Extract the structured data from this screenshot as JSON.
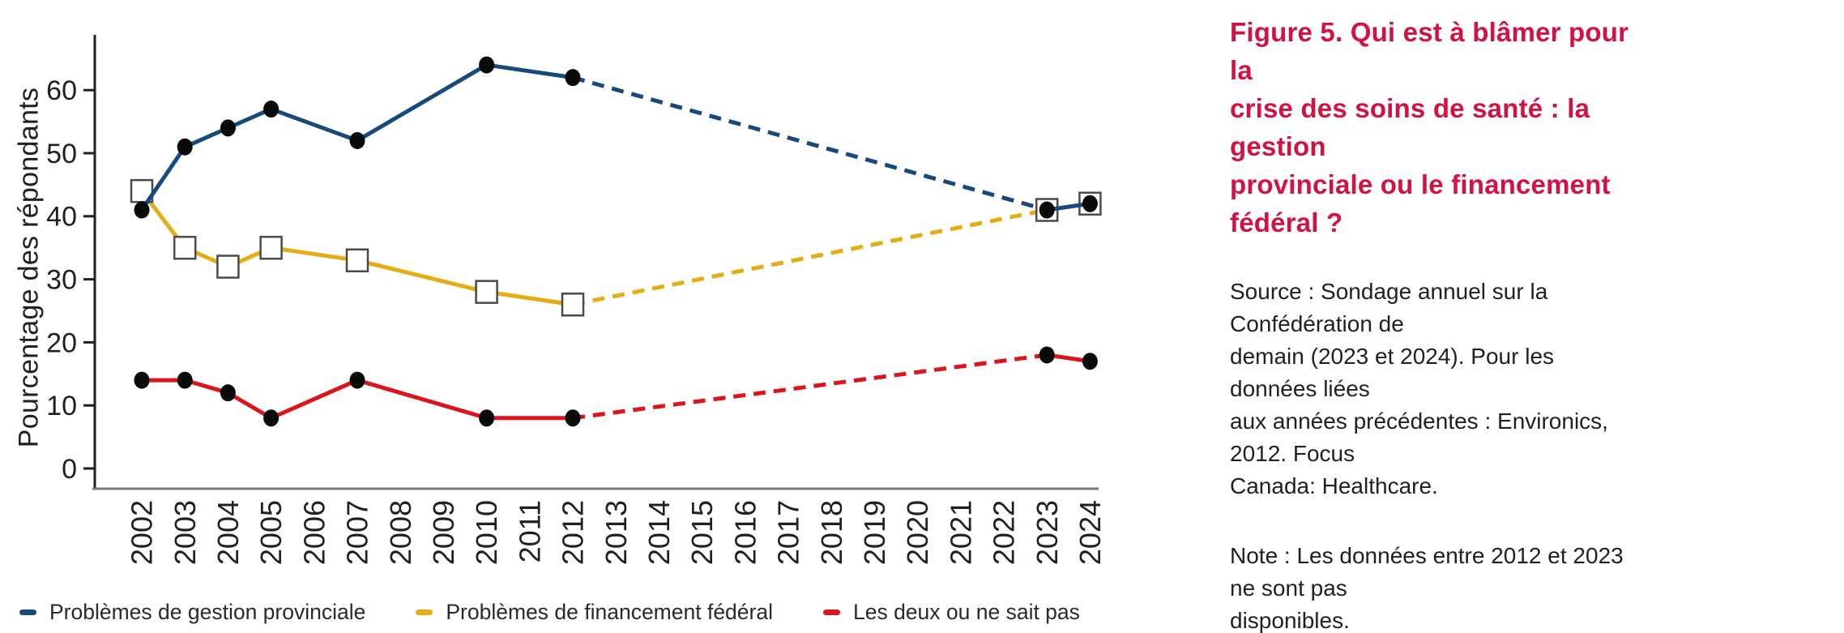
{
  "panel": {
    "title": "Figure 5. Qui est à blâmer pour la\ncrise des soins de santé : la gestion\nprovinciale ou le financement fédéral ?",
    "title_color": "#d11242",
    "source": "Source : Sondage annuel sur la Confédération de\ndemain (2023 et 2024). Pour les données liées\naux années précédentes : Environics, 2012. Focus\nCanada: Healthcare.",
    "note": "Note : Les données entre 2012 et 2023 ne sont pas\ndisponibles."
  },
  "chart_data": {
    "type": "line",
    "title": "",
    "xlabel": "",
    "ylabel": "Pourcentage des répondants",
    "ylim": [
      0,
      66
    ],
    "yticks": [
      0,
      10,
      20,
      30,
      40,
      50,
      60
    ],
    "x_tick_labels": [
      "2002",
      "2003",
      "2004",
      "2005",
      "2006",
      "2007",
      "2008",
      "2009",
      "2010",
      "2011",
      "2012",
      "2013",
      "2014",
      "2015",
      "2016",
      "2017",
      "2018",
      "2019",
      "2020",
      "2021",
      "2022",
      "2023",
      "2024"
    ],
    "grid": false,
    "legend_position": "bottom-left",
    "gap_dashed_between": [
      2012,
      2023
    ],
    "axis": {
      "y_line_color": "#231f20",
      "x_line_color": "#7a7a7a",
      "tick_text_color": "#231f20"
    },
    "marker_fill": "#0a0a0a",
    "series": [
      {
        "name": "Problèmes de gestion provinciale",
        "color": "#17497c",
        "marker": "filled-circle",
        "years": [
          2002,
          2003,
          2004,
          2005,
          2007,
          2010,
          2012,
          2023,
          2024
        ],
        "values": [
          41,
          51,
          54,
          57,
          52,
          64,
          62,
          41,
          42
        ]
      },
      {
        "name": "Problèmes de financement fédéral",
        "color": "#e3ae14",
        "marker": "open-square",
        "years": [
          2002,
          2003,
          2004,
          2005,
          2007,
          2010,
          2012,
          2023,
          2024
        ],
        "values": [
          44,
          35,
          32,
          35,
          33,
          28,
          26,
          41,
          42
        ]
      },
      {
        "name": "Les deux ou ne sait pas",
        "color": "#dc141c",
        "marker": "filled-circle",
        "years": [
          2002,
          2003,
          2004,
          2005,
          2007,
          2010,
          2012,
          2023,
          2024
        ],
        "values": [
          14,
          14,
          12,
          8,
          14,
          8,
          8,
          18,
          17
        ]
      }
    ]
  }
}
